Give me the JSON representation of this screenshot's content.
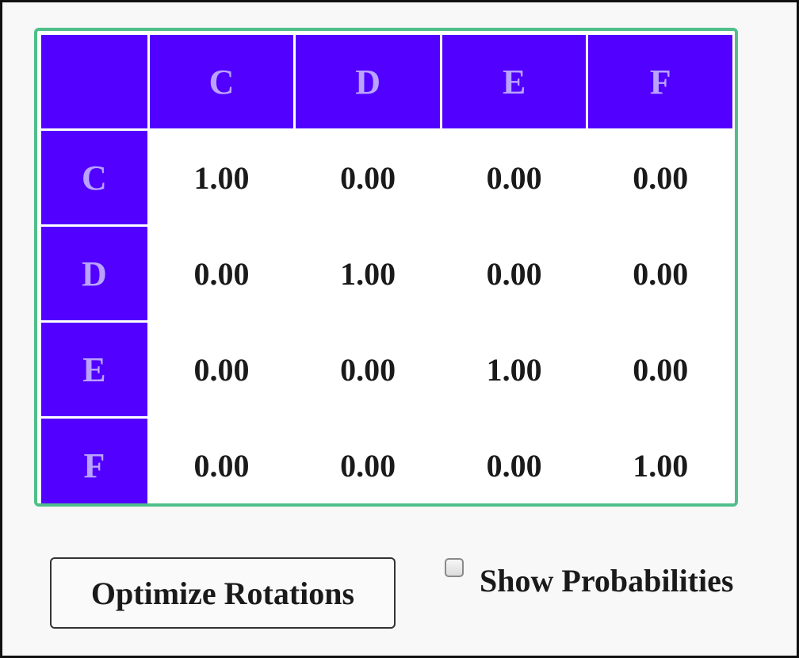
{
  "matrix": {
    "column_headers": [
      "C",
      "D",
      "E",
      "F"
    ],
    "rows": [
      {
        "label": "C",
        "values": [
          "1.00",
          "0.00",
          "0.00",
          "0.00"
        ]
      },
      {
        "label": "D",
        "values": [
          "0.00",
          "1.00",
          "0.00",
          "0.00"
        ]
      },
      {
        "label": "E",
        "values": [
          "0.00",
          "0.00",
          "1.00",
          "0.00"
        ]
      },
      {
        "label": "F",
        "values": [
          "0.00",
          "0.00",
          "0.00",
          "1.00"
        ]
      }
    ]
  },
  "controls": {
    "optimize_label": "Optimize Rotations",
    "show_probabilities_label": "Show Probabilities",
    "show_probabilities_checked": false
  },
  "colors": {
    "header_bg": "#5200ff",
    "header_text": "#b9a3ff",
    "matrix_border": "#4fbf8a"
  }
}
